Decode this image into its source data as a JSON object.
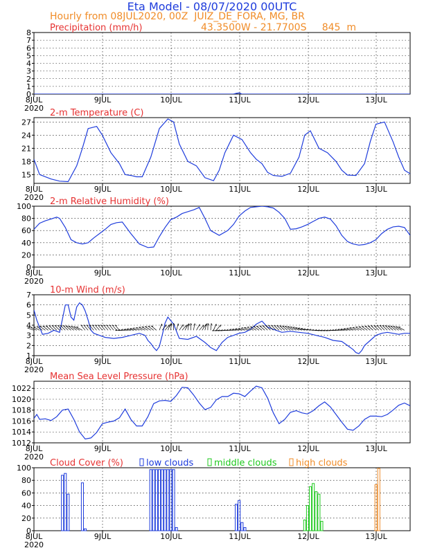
{
  "header": {
    "title": "Eta Model - 08/07/2020 00UTC",
    "subtitle": "Hourly from 08JUL2020, 00Z  JUIZ_DE_FORA, MG, BR",
    "coords": "43.3500W - 21.7700S     845  m"
  },
  "colors": {
    "line": "#1e3cdc",
    "panel_title": "#e63232",
    "arrow": "#000000",
    "low_clouds": "#1e3cdc",
    "middle_clouds": "#1ec81e",
    "high_clouds": "#f08c28"
  },
  "legend": {
    "low": "low clouds",
    "middle": "middle clouds",
    "high": "high clouds"
  },
  "chart_data": [
    {
      "type": "line",
      "title": "Precipitation (mm/h)",
      "xlim": [
        0,
        132
      ],
      "ylim": [
        0,
        8
      ],
      "yticks": [
        "0",
        "1",
        "2",
        "3",
        "4",
        "5",
        "6",
        "7",
        "8"
      ],
      "xticks": [
        "8JUL",
        "9JUL",
        "10JUL",
        "11JUL",
        "12JUL",
        "13JUL"
      ],
      "xtick_sub": "2020",
      "grid": true,
      "x": [
        0,
        70,
        71,
        72,
        73,
        132
      ],
      "y": [
        0,
        0,
        0.1,
        0.15,
        0,
        0
      ]
    },
    {
      "type": "line",
      "title": "2-m Temperature (C)",
      "xlim": [
        0,
        132
      ],
      "ylim": [
        13,
        28
      ],
      "yticks": [
        "15",
        "18",
        "21",
        "24",
        "27"
      ],
      "xticks": [
        "8JUL",
        "9JUL",
        "10JUL",
        "11JUL",
        "12JUL",
        "13JUL"
      ],
      "xtick_sub": "2020",
      "grid": true,
      "x": [
        0,
        2,
        6,
        9,
        12,
        15,
        17,
        19,
        22,
        24,
        27,
        30,
        32,
        34,
        36,
        38,
        41,
        44,
        47,
        49,
        51,
        54,
        57,
        60,
        63,
        65,
        67,
        70,
        73,
        76,
        78,
        80,
        82,
        84,
        87,
        90,
        93,
        95,
        97,
        100,
        103,
        106,
        108,
        110,
        113,
        116,
        118,
        120,
        123,
        126,
        128,
        130,
        132
      ],
      "y": [
        18.5,
        15,
        14,
        13.5,
        13.4,
        17,
        21,
        25.5,
        26,
        24,
        20,
        17.5,
        15,
        14.8,
        14.5,
        14.5,
        19,
        25.5,
        27.7,
        27,
        22,
        18,
        17,
        14.3,
        13.6,
        16,
        20,
        24,
        23,
        20,
        18.5,
        17.5,
        15.5,
        14.8,
        14.6,
        15.3,
        19,
        24,
        25,
        21,
        20,
        18,
        16,
        14.9,
        14.8,
        17.5,
        22.5,
        26.5,
        27,
        22.5,
        19,
        16,
        15.2
      ]
    },
    {
      "type": "line",
      "title": "2-m Relative Humidity (%)",
      "xlim": [
        0,
        132
      ],
      "ylim": [
        0,
        100
      ],
      "yticks": [
        "0",
        "20",
        "40",
        "60",
        "80",
        "100"
      ],
      "xticks": [
        "8JUL",
        "9JUL",
        "10JUL",
        "11JUL",
        "12JUL",
        "13JUL"
      ],
      "xtick_sub": "2020",
      "grid": true,
      "x": [
        0,
        2,
        4,
        6,
        8,
        9,
        11,
        13,
        15,
        17,
        19,
        21,
        23,
        25,
        27,
        29,
        31,
        34,
        37,
        40,
        42,
        44,
        46,
        48,
        50,
        52,
        54,
        56,
        58,
        60,
        62,
        65,
        68,
        70,
        72,
        74,
        76,
        78,
        80,
        82,
        84,
        86,
        88,
        90,
        92,
        94,
        96,
        98,
        100,
        102,
        104,
        106,
        108,
        110,
        112,
        114,
        116,
        118,
        120,
        122,
        124,
        126,
        128,
        130,
        132
      ],
      "y": [
        62,
        72,
        76,
        79,
        82,
        80,
        65,
        45,
        40,
        38,
        40,
        48,
        55,
        62,
        70,
        73,
        74,
        55,
        38,
        32,
        33,
        50,
        65,
        78,
        82,
        88,
        91,
        94,
        98,
        80,
        60,
        52,
        60,
        70,
        84,
        92,
        98,
        99,
        100,
        99,
        97,
        90,
        80,
        62,
        63,
        66,
        70,
        75,
        80,
        82,
        79,
        68,
        52,
        42,
        38,
        36,
        37,
        40,
        45,
        55,
        62,
        66,
        67,
        65,
        52
      ]
    },
    {
      "type": "line",
      "title": "10-m Wind (m/s)",
      "xlim": [
        0,
        132
      ],
      "ylim": [
        1,
        7
      ],
      "yticks": [
        "1",
        "2",
        "3",
        "4",
        "5",
        "6",
        "7"
      ],
      "xticks": [
        "8JUL",
        "9JUL",
        "10JUL",
        "11JUL",
        "12JUL",
        "13JUL"
      ],
      "xtick_sub": "2020",
      "grid": true,
      "x": [
        0,
        1,
        3,
        5,
        7,
        9,
        10,
        11,
        12,
        13,
        14,
        15,
        16,
        17,
        18,
        19,
        20,
        21,
        23,
        25,
        28,
        31,
        34,
        37,
        39,
        40,
        41,
        42,
        43,
        44,
        45,
        46,
        47,
        49,
        51,
        54,
        57,
        60,
        62,
        64,
        66,
        68,
        70,
        72,
        74,
        76,
        78,
        80,
        82,
        84,
        87,
        90,
        93,
        96,
        99,
        102,
        105,
        108,
        110,
        112,
        113,
        114,
        115,
        116,
        118,
        120,
        122,
        124,
        126,
        128,
        130,
        132
      ],
      "y": [
        5.5,
        4.5,
        3.1,
        3.2,
        3.5,
        3.3,
        4.6,
        6.0,
        6.0,
        4.8,
        4.5,
        5.8,
        6.2,
        6.0,
        5.4,
        4.5,
        3.5,
        3.2,
        3.0,
        2.8,
        2.7,
        2.8,
        3.0,
        3.2,
        3.0,
        2.5,
        2.2,
        1.8,
        1.5,
        1.9,
        3.0,
        4.2,
        4.8,
        4.1,
        2.7,
        2.6,
        2.9,
        2.3,
        1.8,
        1.5,
        2.3,
        2.8,
        3.0,
        3.2,
        3.3,
        3.6,
        4.1,
        4.4,
        3.8,
        3.6,
        3.3,
        3.4,
        3.3,
        3.2,
        3.0,
        2.8,
        2.5,
        2.4,
        2.0,
        1.6,
        1.3,
        1.2,
        1.5,
        2.0,
        2.5,
        3.0,
        3.2,
        3.3,
        3.2,
        3.1,
        3.2,
        3.2
      ]
    },
    {
      "type": "line",
      "title": "Mean Sea Level Pressure (hPa)",
      "xlim": [
        0,
        132
      ],
      "ylim": [
        1012,
        1023.3
      ],
      "yticks": [
        "1012",
        "1014",
        "1016",
        "1018",
        "1020",
        "1022"
      ],
      "xticks": [
        "8JUL",
        "9JUL",
        "10JUL",
        "11JUL",
        "12JUL",
        "13JUL"
      ],
      "xtick_sub": "2020",
      "grid": true,
      "x": [
        0,
        1,
        2,
        4,
        6,
        8,
        10,
        12,
        14,
        16,
        18,
        20,
        22,
        24,
        26,
        28,
        30,
        32,
        34,
        36,
        38,
        40,
        42,
        44,
        46,
        48,
        50,
        52,
        54,
        56,
        58,
        60,
        62,
        64,
        66,
        68,
        70,
        72,
        74,
        76,
        78,
        80,
        82,
        84,
        86,
        88,
        90,
        92,
        94,
        96,
        98,
        100,
        102,
        104,
        106,
        108,
        110,
        112,
        114,
        116,
        118,
        120,
        122,
        124,
        126,
        128,
        130,
        132
      ],
      "y": [
        1016.5,
        1017.2,
        1016.3,
        1016.4,
        1016.1,
        1016.8,
        1018,
        1018.2,
        1016.3,
        1014,
        1012.7,
        1012.9,
        1013.9,
        1015.5,
        1015.8,
        1016,
        1016.6,
        1018.2,
        1016.3,
        1015.1,
        1015.1,
        1016.8,
        1019.2,
        1019.7,
        1019.8,
        1019.6,
        1020.7,
        1022.2,
        1022.1,
        1020.8,
        1019.3,
        1018.1,
        1018.5,
        1019.9,
        1020.5,
        1020.5,
        1021.1,
        1021.0,
        1020.5,
        1021.5,
        1022.4,
        1022.1,
        1020.2,
        1017.5,
        1015.5,
        1016.3,
        1017.6,
        1017.9,
        1017.5,
        1017.3,
        1017.9,
        1018.8,
        1019.5,
        1018.6,
        1017.2,
        1015.8,
        1014.5,
        1014.3,
        1015.1,
        1016.3,
        1016.9,
        1016.9,
        1016.8,
        1017.2,
        1018.0,
        1018.9,
        1019.3,
        1018.8
      ]
    },
    {
      "type": "bar",
      "title": "Cloud Cover (%)",
      "xlim": [
        0,
        132
      ],
      "ylim": [
        0,
        100
      ],
      "yticks": [
        "0",
        "20",
        "40",
        "60",
        "80",
        "100"
      ],
      "xticks": [
        "8JUL",
        "9JUL",
        "10JUL",
        "11JUL",
        "12JUL",
        "13JUL"
      ],
      "xtick_sub": "2020",
      "grid": true,
      "series": [
        {
          "name": "low clouds",
          "x": [
            10,
            11,
            12,
            17,
            18,
            41,
            42,
            43,
            44,
            45,
            46,
            47,
            48,
            49,
            50,
            71,
            72,
            73,
            74
          ],
          "values": [
            88,
            91,
            58,
            76,
            3,
            97,
            97,
            97,
            97,
            97,
            97,
            97,
            97,
            97,
            5,
            42,
            48,
            13,
            5
          ]
        },
        {
          "name": "middle clouds",
          "x": [
            95,
            96,
            97,
            98,
            99,
            100,
            101
          ],
          "values": [
            17,
            40,
            70,
            75,
            62,
            58,
            15
          ]
        },
        {
          "name": "high clouds",
          "x": [
            120,
            121
          ],
          "values": [
            73,
            99
          ]
        }
      ]
    }
  ]
}
